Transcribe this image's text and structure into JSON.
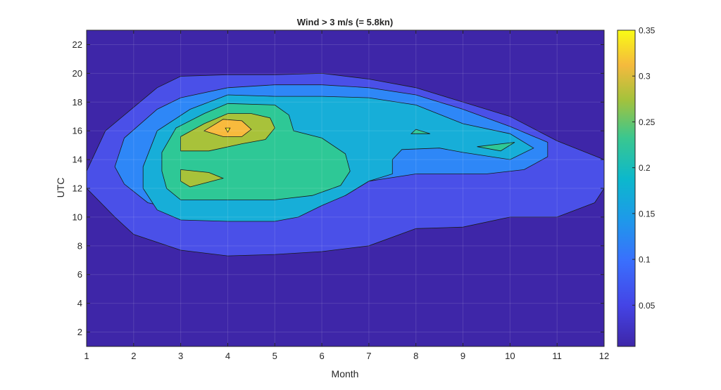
{
  "chart_data": {
    "type": "heatmap",
    "subtype": "filled-contour",
    "title": "Wind > 3 m/s (= 5.8kn)",
    "xlabel": "Month",
    "ylabel": "UTC",
    "xlim": [
      1,
      12
    ],
    "ylim": [
      1,
      23
    ],
    "xticks": [
      1,
      2,
      3,
      4,
      5,
      6,
      7,
      8,
      9,
      10,
      11,
      12
    ],
    "yticks": [
      2,
      4,
      6,
      8,
      10,
      12,
      14,
      16,
      18,
      20,
      22
    ],
    "grid": true,
    "colormap": "parula",
    "colorbar": {
      "position": "right",
      "range": [
        0.005,
        0.35
      ],
      "ticks": [
        0.05,
        0.1,
        0.15,
        0.2,
        0.25,
        0.3,
        0.35
      ]
    },
    "levels": [
      0.05,
      0.1,
      0.15,
      0.2,
      0.25,
      0.3
    ],
    "level_colors": [
      "#3e26a8",
      "#4a50e8",
      "#2e87f7",
      "#17aed8",
      "#2ec896",
      "#a8c23a",
      "#f8ba3d",
      "#f9fb15"
    ],
    "contours": [
      {
        "level": 0.05,
        "points": [
          [
            1,
            13.2
          ],
          [
            1.4,
            16
          ],
          [
            2.5,
            19
          ],
          [
            3,
            19.8
          ],
          [
            4,
            19.9
          ],
          [
            5,
            19.9
          ],
          [
            6,
            20
          ],
          [
            7,
            19.6
          ],
          [
            8,
            19
          ],
          [
            9,
            18
          ],
          [
            10,
            17
          ],
          [
            11,
            15.3
          ],
          [
            12,
            14
          ],
          [
            12,
            12
          ],
          [
            11.8,
            11
          ],
          [
            11,
            10
          ],
          [
            10,
            10
          ],
          [
            9,
            9.3
          ],
          [
            8,
            9.2
          ],
          [
            7,
            8
          ],
          [
            6,
            7.6
          ],
          [
            5,
            7.4
          ],
          [
            4,
            7.3
          ],
          [
            3,
            7.7
          ],
          [
            2,
            8.8
          ],
          [
            1.6,
            10
          ],
          [
            1,
            12
          ]
        ]
      },
      {
        "level": 0.1,
        "points": [
          [
            1.6,
            13.5
          ],
          [
            1.8,
            15.5
          ],
          [
            2.5,
            17.5
          ],
          [
            3,
            18.3
          ],
          [
            4,
            19
          ],
          [
            5,
            19.2
          ],
          [
            6,
            19.2
          ],
          [
            7,
            19
          ],
          [
            8,
            18.5
          ],
          [
            9,
            17.5
          ],
          [
            10,
            16.3
          ],
          [
            10.8,
            15.2
          ],
          [
            10.8,
            14.2
          ],
          [
            10.3,
            13.3
          ],
          [
            9.5,
            13
          ],
          [
            8,
            13
          ],
          [
            7,
            12.5
          ],
          [
            6.5,
            11.5
          ],
          [
            6,
            11
          ],
          [
            5.5,
            10.8
          ],
          [
            5,
            10.6
          ],
          [
            4,
            10.5
          ],
          [
            3,
            10.5
          ],
          [
            2.3,
            11
          ],
          [
            1.8,
            12.3
          ]
        ]
      },
      {
        "level": 0.15,
        "points": [
          [
            2.2,
            13.5
          ],
          [
            2.5,
            16
          ],
          [
            3.2,
            17.5
          ],
          [
            4,
            18.5
          ],
          [
            5,
            18.4
          ],
          [
            6,
            18.4
          ],
          [
            7,
            18.3
          ],
          [
            8,
            17.8
          ],
          [
            9,
            16.5
          ],
          [
            10,
            15.8
          ],
          [
            10.5,
            14.8
          ],
          [
            10,
            14
          ],
          [
            9,
            14.5
          ],
          [
            8.5,
            14.8
          ],
          [
            7.7,
            14.7
          ],
          [
            7.5,
            14
          ],
          [
            7.5,
            13
          ],
          [
            7,
            12.5
          ],
          [
            6.5,
            11.5
          ],
          [
            6,
            10.8
          ],
          [
            5.5,
            10
          ],
          [
            5,
            9.7
          ],
          [
            4,
            9.7
          ],
          [
            3,
            9.8
          ],
          [
            2.5,
            10.5
          ],
          [
            2.2,
            12
          ]
        ]
      },
      {
        "level": 0.2,
        "points": [
          [
            2.6,
            14.5
          ],
          [
            2.9,
            16.2
          ],
          [
            3.5,
            17.2
          ],
          [
            4,
            17.9
          ],
          [
            5,
            17.8
          ],
          [
            5.3,
            17.1
          ],
          [
            5.4,
            16
          ],
          [
            6,
            15.5
          ],
          [
            6.5,
            14.4
          ],
          [
            6.6,
            13.2
          ],
          [
            6.4,
            12.2
          ],
          [
            5.8,
            11.5
          ],
          [
            5,
            11.2
          ],
          [
            4,
            11.2
          ],
          [
            3,
            11.2
          ],
          [
            2.7,
            12
          ],
          [
            2.6,
            13.2
          ]
        ]
      },
      {
        "level": 0.25,
        "points": [
          [
            3,
            14.6
          ],
          [
            3,
            15.6
          ],
          [
            3.5,
            16.5
          ],
          [
            4,
            17.2
          ],
          [
            4.5,
            17.2
          ],
          [
            4.9,
            16.9
          ],
          [
            5,
            16.2
          ],
          [
            4.8,
            15.4
          ],
          [
            4.3,
            15.1
          ],
          [
            3.6,
            14.6
          ]
        ]
      },
      {
        "level": 0.25,
        "points": [
          [
            3,
            13.3
          ],
          [
            3.6,
            13.1
          ],
          [
            3.9,
            12.7
          ],
          [
            3.2,
            12.1
          ],
          [
            3,
            12.5
          ]
        ]
      },
      {
        "level": 0.3,
        "points": [
          [
            3.5,
            16
          ],
          [
            3.9,
            16.8
          ],
          [
            4.3,
            16.7
          ],
          [
            4.5,
            16.1
          ],
          [
            4.3,
            15.6
          ],
          [
            3.9,
            15.6
          ]
        ]
      },
      {
        "level": 0.35,
        "points": [
          [
            3.95,
            16.2
          ],
          [
            4.05,
            16.2
          ],
          [
            4,
            15.9
          ]
        ]
      },
      {
        "level": 0.2,
        "points": [
          [
            9.3,
            14.9
          ],
          [
            10.1,
            15.2
          ],
          [
            9.8,
            14.6
          ]
        ]
      },
      {
        "level": 0.2,
        "points": [
          [
            7.9,
            15.8
          ],
          [
            8.3,
            15.8
          ],
          [
            8,
            16.1
          ]
        ]
      }
    ]
  }
}
